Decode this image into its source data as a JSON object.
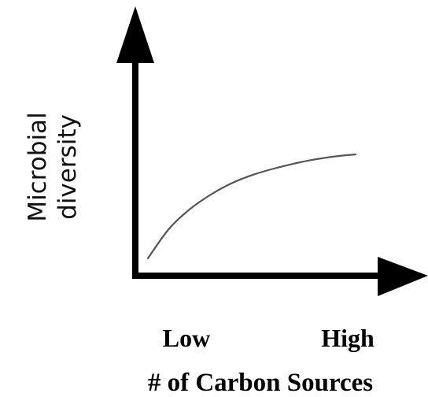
{
  "chart_data": {
    "type": "line",
    "title": "",
    "xlabel": "# of Carbon Sources",
    "ylabel_lines": [
      "Microbial",
      "diversity"
    ],
    "x_tick_labels": [
      "Low",
      "High"
    ],
    "series": [
      {
        "x": [
          0.0,
          0.1,
          0.2,
          0.3,
          0.4,
          0.5,
          0.6,
          0.7,
          0.8,
          0.9,
          1.0
        ],
        "values": [
          0.0,
          0.28,
          0.47,
          0.61,
          0.72,
          0.8,
          0.86,
          0.91,
          0.95,
          0.98,
          1.0
        ]
      }
    ],
    "grid": false,
    "colors": {
      "axis": "#000000",
      "curve": "#555555"
    }
  }
}
